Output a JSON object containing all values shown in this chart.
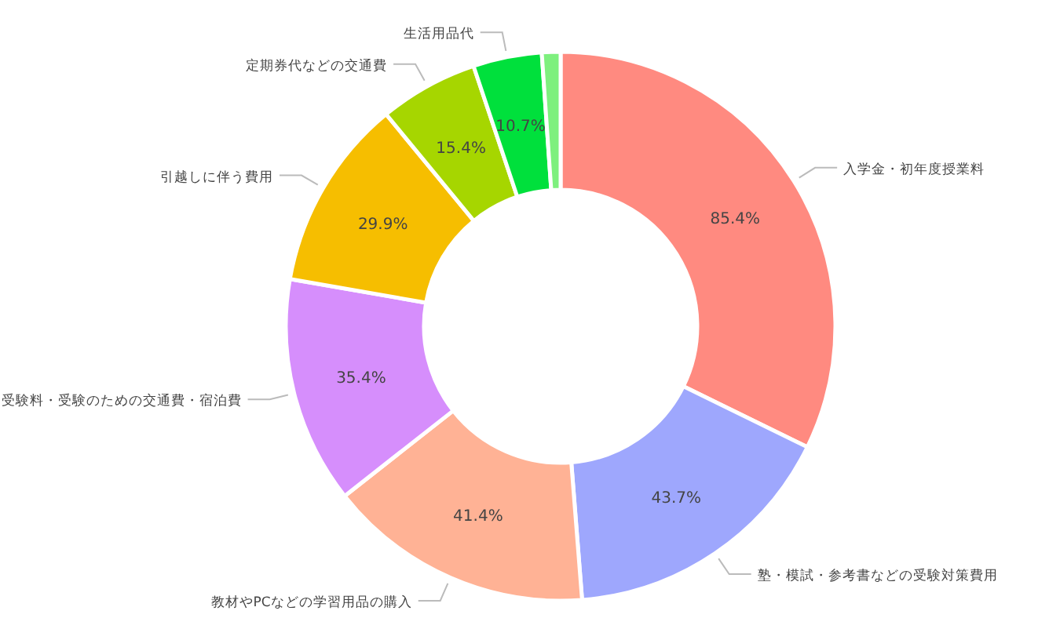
{
  "chart_data": {
    "type": "donut",
    "categories": [
      "入学金・初年度授業料",
      "塾・模試・参考書などの受験対策費用",
      "教材やPCなどの学習用品の購入",
      "受験料・受験のための交通費・宿泊費",
      "引越しに伴う費用",
      "定期券代などの交通費",
      "生活用品代",
      null
    ],
    "values": [
      85.4,
      43.7,
      41.4,
      35.4,
      29.9,
      15.4,
      10.7,
      2.9
    ],
    "colors": [
      "#ff8a80",
      "#9ea7fd",
      "#ffb295",
      "#d68efc",
      "#f6be00",
      "#a6d600",
      "#00e03c",
      "#7ef07e"
    ],
    "value_labels": [
      "85.4%",
      "43.7%",
      "41.4%",
      "35.4%",
      "29.9%",
      "15.4%",
      "10.7%",
      null
    ]
  }
}
